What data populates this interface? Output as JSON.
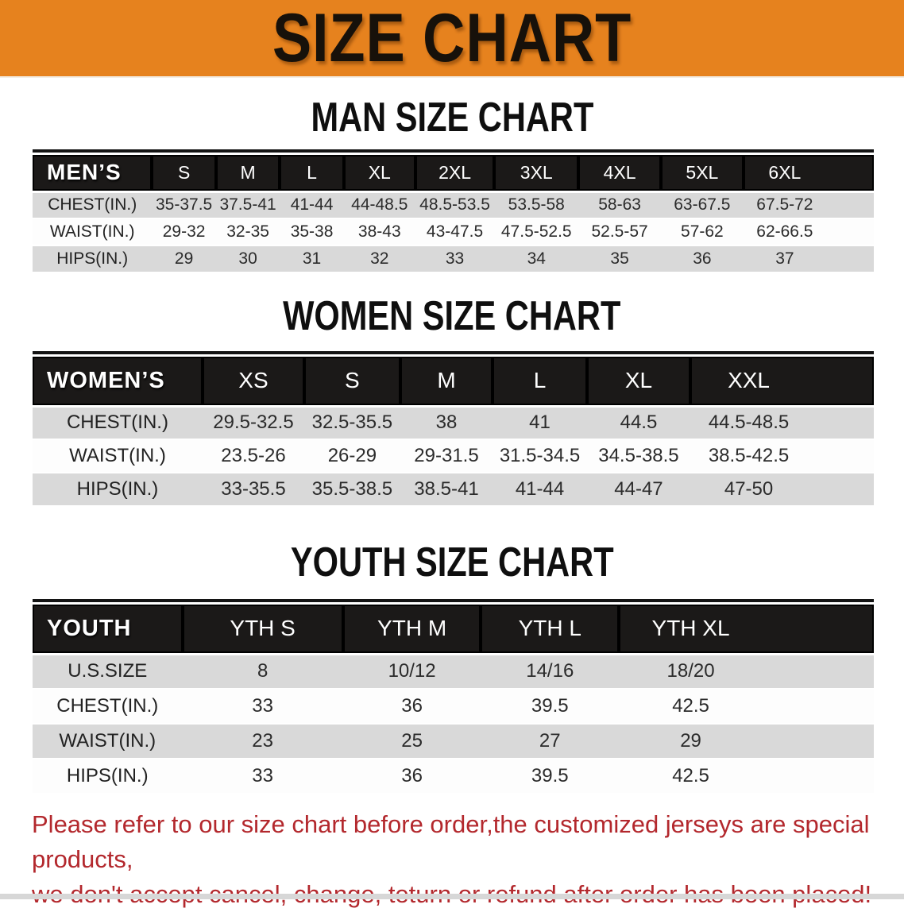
{
  "banner": {
    "title": "SIZE CHART"
  },
  "men": {
    "title": "MAN SIZE CHART",
    "header": [
      "MEN’S",
      "S",
      "M",
      "L",
      "XL",
      "2XL",
      "3XL",
      "4XL",
      "5XL",
      "6XL"
    ],
    "rows": [
      {
        "label": "CHEST(IN.)",
        "values": [
          "35-37.5",
          "37.5-41",
          "41-44",
          "44-48.5",
          "48.5-53.5",
          "53.5-58",
          "58-63",
          "63-67.5",
          "67.5-72"
        ]
      },
      {
        "label": "WAIST(IN.)",
        "values": [
          "29-32",
          "32-35",
          "35-38",
          "38-43",
          "43-47.5",
          "47.5-52.5",
          "52.5-57",
          "57-62",
          "62-66.5"
        ]
      },
      {
        "label": "HIPS(IN.)",
        "values": [
          "29",
          "30",
          "31",
          "32",
          "33",
          "34",
          "35",
          "36",
          "37"
        ]
      }
    ]
  },
  "women": {
    "title": "WOMEN SIZE CHART",
    "header": [
      "WOMEN’S",
      "XS",
      "S",
      "M",
      "L",
      "XL",
      "XXL"
    ],
    "rows": [
      {
        "label": "CHEST(IN.)",
        "values": [
          "29.5-32.5",
          "32.5-35.5",
          "38",
          "41",
          "44.5",
          "44.5-48.5"
        ]
      },
      {
        "label": "WAIST(IN.)",
        "values": [
          "23.5-26",
          "26-29",
          "29-31.5",
          "31.5-34.5",
          "34.5-38.5",
          "38.5-42.5"
        ]
      },
      {
        "label": "HIPS(IN.)",
        "values": [
          "33-35.5",
          "35.5-38.5",
          "38.5-41",
          "41-44",
          "44-47",
          "47-50"
        ]
      }
    ]
  },
  "youth": {
    "title": "YOUTH SIZE CHART",
    "header": [
      "YOUTH",
      "YTH S",
      "YTH M",
      "YTH L",
      "YTH XL"
    ],
    "rows": [
      {
        "label": "U.S.SIZE",
        "values": [
          "8",
          "10/12",
          "14/16",
          "18/20"
        ]
      },
      {
        "label": "CHEST(IN.)",
        "values": [
          "33",
          "36",
          "39.5",
          "42.5"
        ]
      },
      {
        "label": "WAIST(IN.)",
        "values": [
          "23",
          "25",
          "27",
          "29"
        ]
      },
      {
        "label": "HIPS(IN.)",
        "values": [
          "33",
          "36",
          "39.5",
          "42.5"
        ]
      }
    ]
  },
  "footer": {
    "line1": "Please refer to our size chart before order,the customized jerseys are special products,",
    "line2": "we don't accept cancel, change, teturn or refund after order has been placed!"
  },
  "colors": {
    "banner_orange": "#E6821E",
    "header_black": "#1b1918",
    "row_gray": "#d9d9d9",
    "note_red": "#b3282d"
  }
}
